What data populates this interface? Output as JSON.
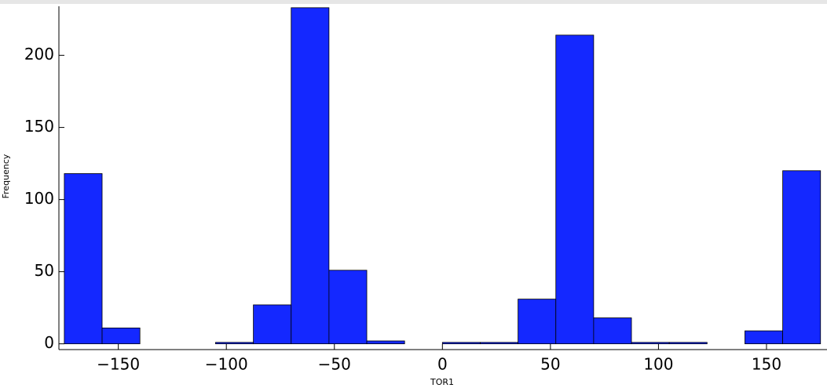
{
  "chart_data": {
    "type": "histogram",
    "x_label": "TOR1",
    "y_label": "Frequency",
    "bins": [
      -175,
      -157.5,
      -140,
      -122.5,
      -105,
      -87.5,
      -70,
      -52.5,
      -35,
      -17.5,
      0,
      17.5,
      35,
      52.5,
      70,
      87.5,
      105,
      122.5,
      140,
      157.5,
      175
    ],
    "values": [
      118,
      11,
      0,
      0,
      1,
      27,
      233,
      51,
      2,
      0,
      1,
      1,
      31,
      214,
      18,
      1,
      1,
      0,
      9,
      120
    ],
    "color": "#1428ff",
    "xlim": [
      -177.5,
      178
    ],
    "ylim": [
      -4,
      234
    ],
    "xticks": [
      -150,
      -100,
      -50,
      0,
      50,
      100,
      150
    ],
    "yticks": [
      0,
      50,
      100,
      150,
      200
    ]
  }
}
